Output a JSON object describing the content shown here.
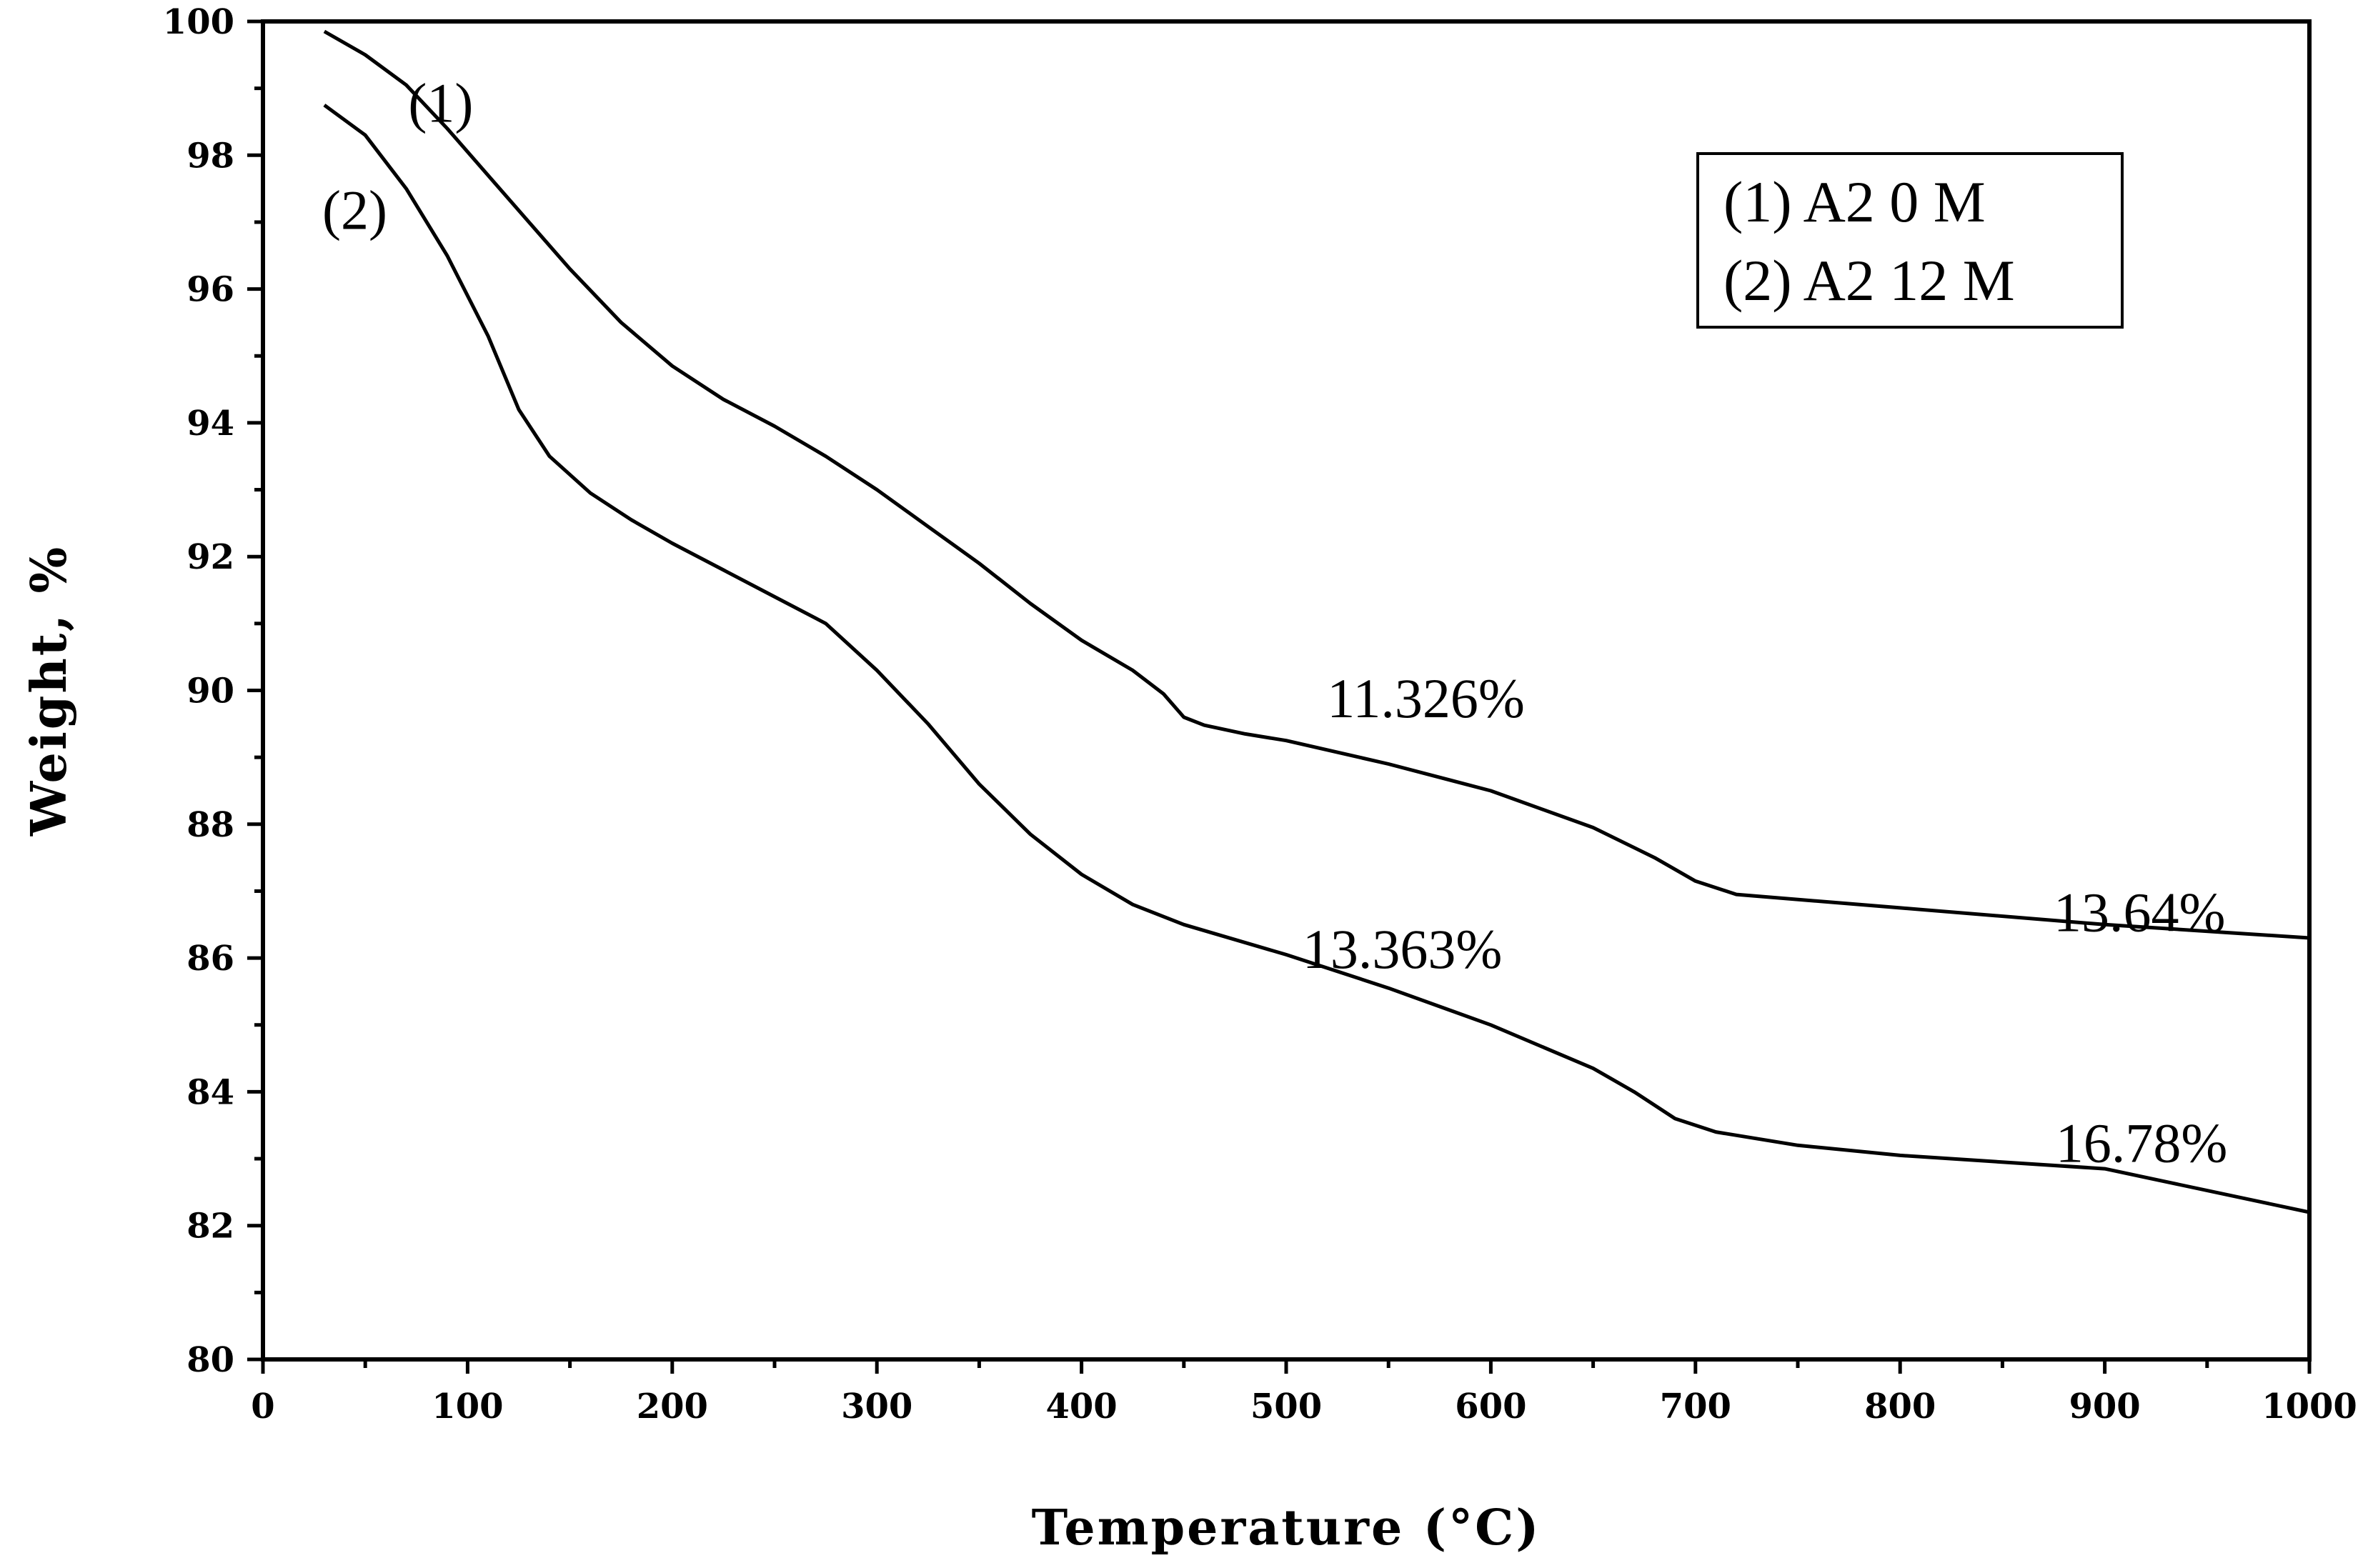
{
  "chart_data": {
    "type": "line",
    "title": "",
    "xlabel": "Temperature (°C)",
    "ylabel": "Weight, %",
    "xlim": [
      0,
      1000
    ],
    "ylim": [
      80,
      100
    ],
    "xticks": [
      "0",
      "100",
      "200",
      "300",
      "400",
      "500",
      "600",
      "700",
      "800",
      "900",
      "1000"
    ],
    "yticks": [
      "80",
      "82",
      "84",
      "86",
      "88",
      "90",
      "92",
      "94",
      "96",
      "98",
      "100"
    ],
    "grid": false,
    "legend": {
      "position": "top-right",
      "entries": [
        "(1) A2 0 M",
        "(2) A2 12 M"
      ]
    },
    "series": [
      {
        "name": "(1) A2 0 M",
        "label": "(1)",
        "x": [
          30,
          50,
          70,
          90,
          110,
          130,
          150,
          175,
          200,
          225,
          250,
          275,
          300,
          325,
          350,
          375,
          400,
          425,
          440,
          450,
          460,
          480,
          500,
          550,
          600,
          650,
          680,
          700,
          720,
          800,
          900,
          1000
        ],
        "y": [
          99.85,
          99.5,
          99.05,
          98.4,
          97.7,
          97.0,
          96.3,
          95.5,
          94.85,
          94.35,
          93.95,
          93.5,
          93.0,
          92.45,
          91.9,
          91.3,
          90.75,
          90.3,
          89.95,
          89.6,
          89.48,
          89.35,
          89.25,
          88.9,
          88.5,
          87.95,
          87.5,
          87.15,
          86.95,
          86.75,
          86.5,
          86.3
        ]
      },
      {
        "name": "(2) A2 12 M",
        "label": "(2)",
        "x": [
          30,
          50,
          70,
          90,
          110,
          125,
          140,
          160,
          180,
          200,
          225,
          250,
          275,
          300,
          325,
          350,
          375,
          400,
          425,
          450,
          500,
          550,
          600,
          650,
          670,
          690,
          710,
          750,
          800,
          900,
          1000
        ],
        "y": [
          98.75,
          98.3,
          97.5,
          96.5,
          95.3,
          94.2,
          93.5,
          92.95,
          92.55,
          92.2,
          91.8,
          91.4,
          91.0,
          90.3,
          89.5,
          88.6,
          87.85,
          87.25,
          86.8,
          86.5,
          86.05,
          85.55,
          85.0,
          84.35,
          84.0,
          83.6,
          83.4,
          83.2,
          83.05,
          82.85,
          82.2
        ]
      }
    ],
    "annotations": [
      {
        "text": "11.326%",
        "x": 520,
        "y": 89.6
      },
      {
        "text": "13.64%",
        "x": 875,
        "y": 86.4
      },
      {
        "text": "13.363%",
        "x": 508,
        "y": 85.85
      },
      {
        "text": "16.78%",
        "x": 876,
        "y": 82.95
      }
    ]
  }
}
